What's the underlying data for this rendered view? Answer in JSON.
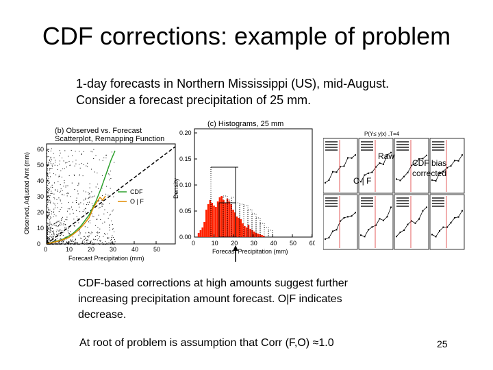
{
  "slide": {
    "title": "CDF corrections: example of problem",
    "subtitle_line1": "1-day forecasts in Northern Mississippi (US), mid-August.",
    "subtitle_line2": "Consider a forecast precipitation of 25 mm.",
    "body_line1": "CDF-based corrections at high amounts suggest further",
    "body_line2": "increasing precipitation amount forecast.  O|F indicates",
    "body_line3": "decrease.",
    "root_text": "At root of problem is assumption that Corr (F,O) ≈1.0",
    "page_number": "25"
  },
  "figures": {
    "scatter": {
      "title_line1": "(b) Observed vs. Forecast",
      "title_line2": "Scatterplot, Remapping Function",
      "ylabel": "Observed, Adjusted Amt (mm)",
      "xlabel": "Forecast Precipitation (mm)",
      "xticks": [
        "0",
        "10",
        "20",
        "30",
        "40",
        "50"
      ],
      "yticks": [
        "0",
        "10",
        "20",
        "30",
        "40",
        "50",
        "60"
      ],
      "legend_cdf": "CDF",
      "legend_of": "O | F",
      "color_cdf": "#2ca02c",
      "color_of": "#e08a00"
    },
    "histogram": {
      "title": "(c) Histograms, 25 mm",
      "ylabel": "Density",
      "xlabel": "Forecast Precipitation (mm)",
      "xticks": [
        "0",
        "10",
        "20",
        "30",
        "40",
        "50",
        "60"
      ],
      "yticks": [
        "0.00",
        "0.05",
        "0.10",
        "0.15",
        "0.20"
      ],
      "bar_color": "#ff2200"
    },
    "grid": {
      "label_raw": "Raw",
      "label_of": "O | F",
      "label_cdf1": "CDF bias",
      "label_cdf2": "corrected",
      "header": "P(Y≤ y|x) ,T=4"
    }
  }
}
